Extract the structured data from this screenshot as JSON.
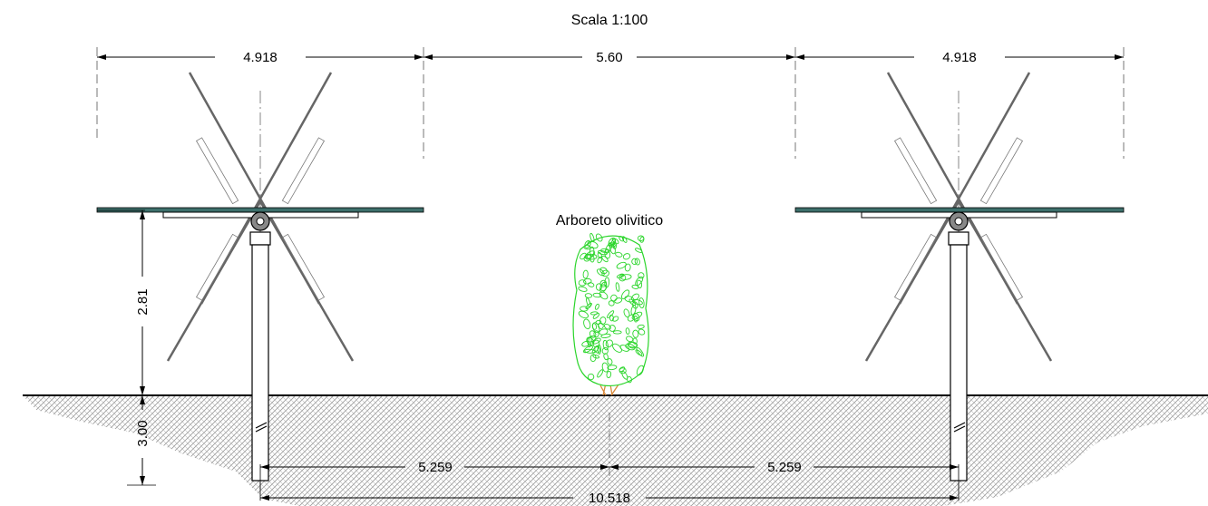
{
  "title": {
    "scale": "Scala 1:100"
  },
  "labels": {
    "tree": "Arboreto olivitico"
  },
  "dimensions": {
    "left_tracker_span": "4.918",
    "row_gap": "5.60",
    "right_tracker_span": "4.918",
    "pile_height": "2.81",
    "pile_depth": "3.00",
    "half_spacing_left": "5.259",
    "half_spacing_right": "5.259",
    "pile_spacing": "10.518"
  },
  "colors": {
    "line": "#000000",
    "ground_hatch": "#9a9a9a",
    "panel": "#3d6f6b",
    "tree": "#2bd52b",
    "trunk": "#d9893a"
  }
}
